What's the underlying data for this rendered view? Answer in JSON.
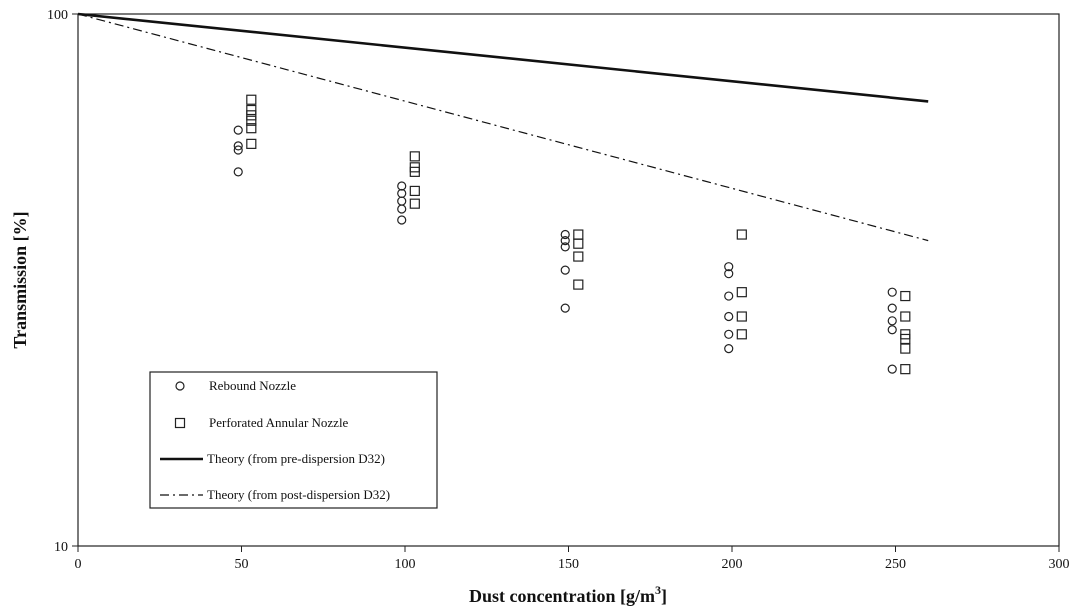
{
  "chart_data": {
    "type": "scatter",
    "xlabel": "Dust concentration [g/m",
    "xlabel_superscript": "3",
    "xlabel_suffix": "]",
    "ylabel": "Transmission [%]",
    "xlim": [
      0,
      300
    ],
    "ylim": [
      10,
      100
    ],
    "y_scale": "log",
    "grid": false,
    "legend_position": "bottom-left",
    "x_ticks": [
      "0",
      "50",
      "100",
      "150",
      "200",
      "250",
      "300"
    ],
    "y_ticks": [
      "10",
      "100"
    ],
    "series": [
      {
        "name": "Rebound Nozzle",
        "type": "scatter",
        "marker": "circle",
        "points": [
          [
            49,
            60.5
          ],
          [
            49,
            56.5
          ],
          [
            49,
            55.5
          ],
          [
            49,
            50.5
          ],
          [
            99,
            47.5
          ],
          [
            99,
            46
          ],
          [
            99,
            44.5
          ],
          [
            99,
            43
          ],
          [
            99,
            41
          ],
          [
            149,
            38.5
          ],
          [
            149,
            37.5
          ],
          [
            149,
            36.5
          ],
          [
            149,
            33
          ],
          [
            149,
            28
          ],
          [
            199,
            33.5
          ],
          [
            199,
            32.5
          ],
          [
            199,
            29.5
          ],
          [
            199,
            27
          ],
          [
            199,
            25
          ],
          [
            199,
            23.5
          ],
          [
            249,
            30
          ],
          [
            249,
            28
          ],
          [
            249,
            26.5
          ],
          [
            249,
            25.5
          ],
          [
            249,
            21.5
          ]
        ]
      },
      {
        "name": "Perforated Annular Nozzle",
        "type": "scatter",
        "marker": "square",
        "points": [
          [
            53,
            69
          ],
          [
            53,
            66
          ],
          [
            53,
            64.5
          ],
          [
            53,
            63
          ],
          [
            53,
            61
          ],
          [
            53,
            57
          ],
          [
            103,
            54
          ],
          [
            103,
            51.5
          ],
          [
            103,
            50.5
          ],
          [
            103,
            46.5
          ],
          [
            103,
            44
          ],
          [
            153,
            38.5
          ],
          [
            153,
            37
          ],
          [
            153,
            35
          ],
          [
            153,
            31
          ],
          [
            203,
            38.5
          ],
          [
            203,
            30
          ],
          [
            203,
            27
          ],
          [
            203,
            25
          ],
          [
            253,
            29.5
          ],
          [
            253,
            27
          ],
          [
            253,
            25
          ],
          [
            253,
            24.5
          ],
          [
            253,
            23.5
          ],
          [
            253,
            21.5
          ]
        ]
      },
      {
        "name": "Theory (from pre-dispersion D32)",
        "type": "line",
        "style": "solid",
        "points": [
          [
            0,
            100
          ],
          [
            260,
            68.5
          ]
        ]
      },
      {
        "name": "Theory (from post-dispersion D32)",
        "type": "line",
        "style": "dashdot",
        "points": [
          [
            0,
            100
          ],
          [
            260,
            37.5
          ]
        ]
      }
    ]
  }
}
